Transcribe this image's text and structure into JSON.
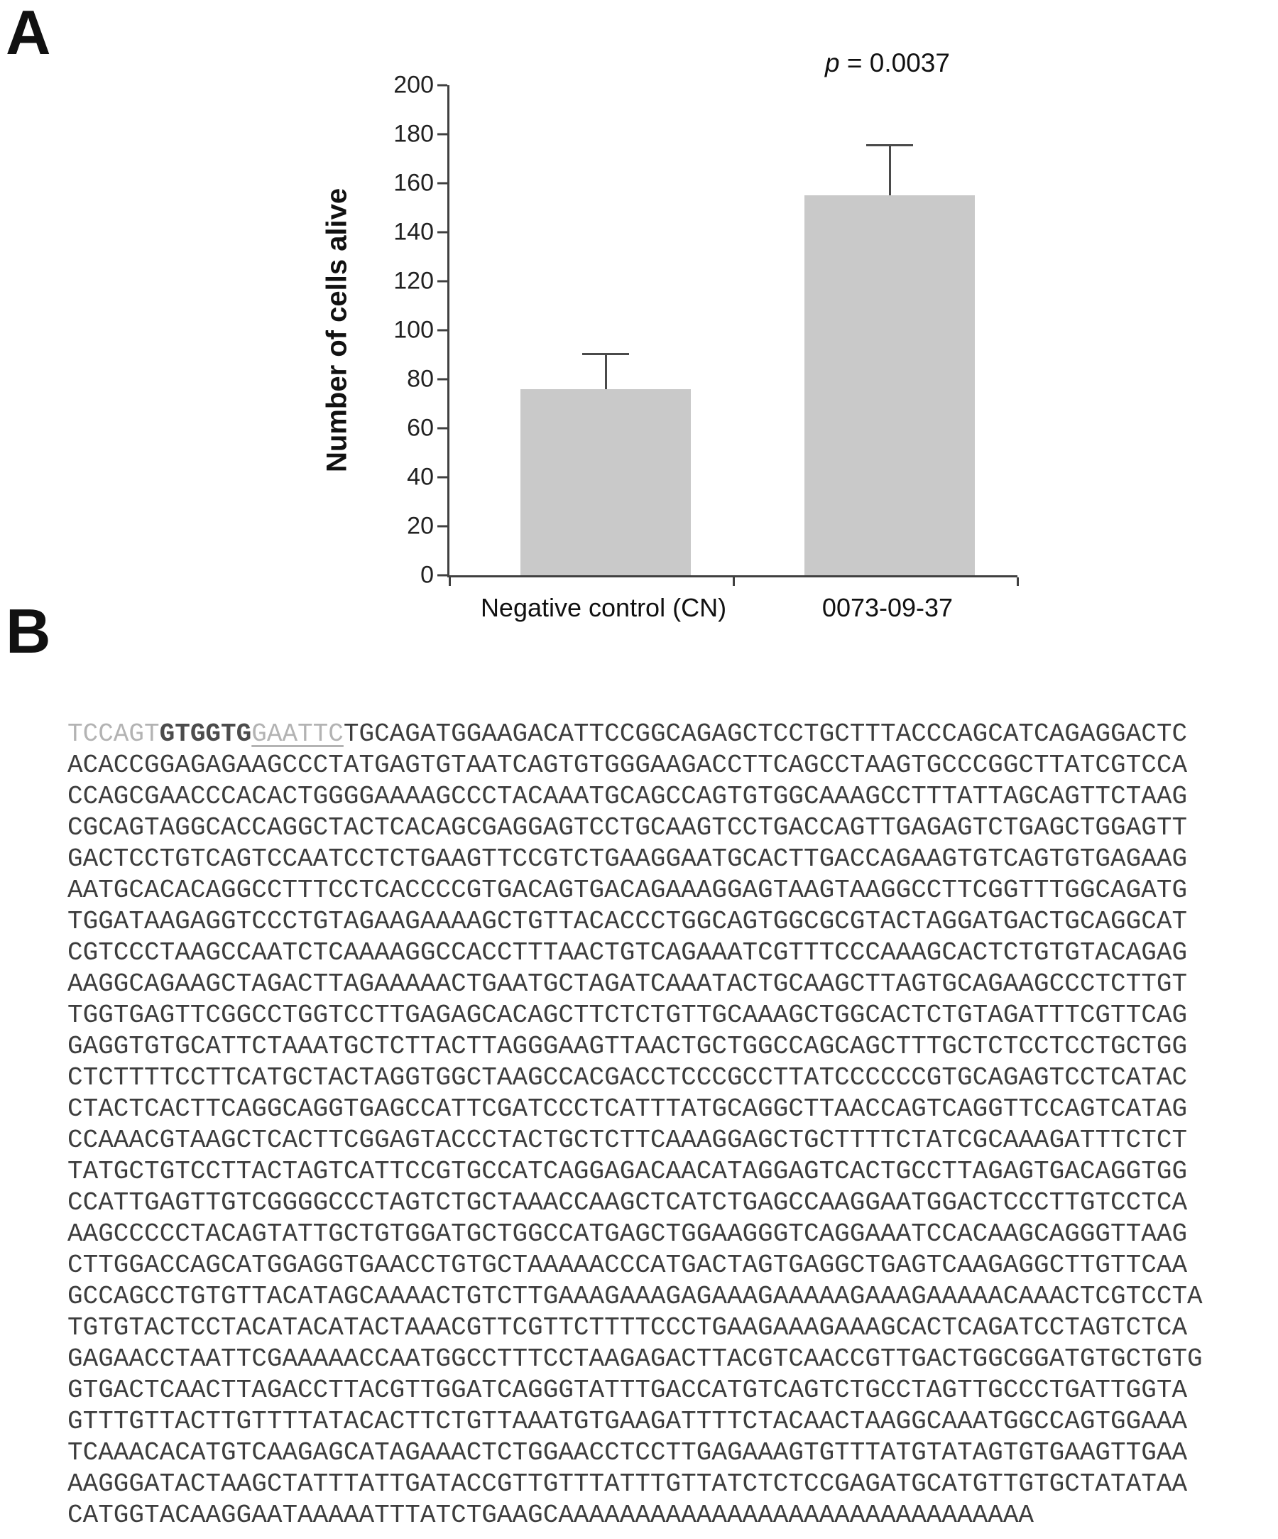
{
  "panel_a": {
    "label": "A",
    "chart_data": {
      "type": "bar",
      "categories": [
        "Negative control (CN)",
        "0073-09-37"
      ],
      "values": [
        76,
        155
      ],
      "error_upper": [
        14,
        20
      ],
      "title": "",
      "xlabel": "",
      "ylabel": "Number of cells alive",
      "ylim": [
        0,
        200
      ],
      "ytick_step": 20,
      "grid": false,
      "legend": false,
      "bar_color": "#c9c9c9",
      "error_bar_color": "#4a4a4a",
      "annotation": {
        "italic_part": "p",
        "rest": " = 0.0037"
      }
    }
  },
  "panel_b": {
    "label": "B",
    "sequence": {
      "line1_segments": [
        {
          "text": "TCCAGT",
          "style": "dim",
          "meaning": "vector-flank"
        },
        {
          "text": "GTGGTG",
          "style": "bold",
          "meaning": "bold-motif"
        },
        {
          "text": "GAATTC",
          "style": "dim-underline",
          "meaning": "restriction-site"
        },
        {
          "text": "TGCAGATGGAAGACATTCCGGCAGAGCTCCTGCTTTACCCAGCATCAGAGGACTC",
          "style": "normal",
          "meaning": "insert"
        }
      ],
      "rest_lines": [
        "ACACCGGAGAGAAGCCCTATGAGTGTAATCAGTGTGGGAAGACCTTCAGCCTAAGTGCCCGGCTTATCGTCCA",
        "CCAGCGAACCCACACTGGGGAAAAGCCCTACAAATGCAGCCAGTGTGGCAAAGCCTTTATTAGCAGTTCTAAG",
        "CGCAGTAGGCACCAGGCTACTCACAGCGAGGAGTCCTGCAAGTCCTGACCAGTTGAGAGTCTGAGCTGGAGTT",
        "GACTCCTGTCAGTCCAATCCTCTGAAGTTCCGTCTGAAGGAATGCACTTGACCAGAAGTGTCAGTGTGAGAAG",
        "AATGCACACAGGCCTTTCCTCACCCCGTGACAGTGACAGAAAGGAGTAAGTAAGGCCTTCGGTTTGGCAGATG",
        "TGGATAAGAGGTCCCTGTAGAAGAAAAGCTGTTACACCCTGGCAGTGGCGCGTACTAGGATGACTGCAGGCAT",
        "CGTCCCTAAGCCAATCTCAAAAGGCCACCTTTAACTGTCAGAAATCGTTTCCCAAAGCACTCTGTGTACAGAG",
        "AAGGCAGAAGCTAGACTTAGAAAAACTGAATGCTAGATCAAATACTGCAAGCTTAGTGCAGAAGCCCTCTTGT",
        "TGGTGAGTTCGGCCTGGTCCTTGAGAGCACAGCTTCTCTGTTGCAAAGCTGGCACTCTGTAGATTTCGTTCAG",
        "GAGGTGTGCATTCTAAATGCTCTTACTTAGGGAAGTTAACTGCTGGCCAGCAGCTTTGCTCTCCTCCTGCTGG",
        "CTCTTTTCCTTCATGCTACTAGGTGGCTAAGCCACGACCTCCCGCCTTATCCCCCCGTGCAGAGTCCTCATAC",
        "CTACTCACTTCAGGCAGGTGAGCCATTCGATCCCTCATTTATGCAGGCTTAACCAGTCAGGTTCCAGTCATAG",
        "CCAAACGTAAGCTCACTTCGGAGTACCCTACTGCTCTTCAAAGGAGCTGCTTTTCTATCGCAAAGATTTCTCT",
        "TATGCTGTCCTTACTAGTCATTCCGTGCCATCAGGAGACAACATAGGAGTCACTGCCTTAGAGTGACAGGTGG",
        "CCATTGAGTTGTCGGGGCCCTAGTCTGCTAAACCAAGCTCATCTGAGCCAAGGAATGGACTCCCTTGTCCTCA",
        "AAGCCCCCTACAGTATTGCTGTGGATGCTGGCCATGAGCTGGAAGGGTCAGGAAATCCACAAGCAGGGTTAAG",
        "CTTGGACCAGCATGGAGGTGAACCTGTGCTAAAAACCCATGACTAGTGAGGCTGAGTCAAGAGGCTTGTTCAA",
        "GCCAGCCTGTGTTACATAGCAAAACTGTCTTGAAAGAAAGAGAAAGAAAAAGAAAGAAAAACAAACTCGTCCTA",
        "TGTGTACTCCTACATACATACTAAACGTTCGTTCTTTTCCCTGAAGAAAGAAAGCACTCAGATCCTAGTCTCA",
        "GAGAACCTAATTCGAAAAACCAATGGCCTTTCCTAAGAGACTTACGTCAACCGTTGACTGGCGGATGTGCTGTG",
        "GTGACTCAACTTAGACCTTACGTTGGATCAGGGTATTTGACCATGTCAGTCTGCCTAGTTGCCCTGATTGGTA",
        "GTTTGTTACTTGTTTTATACACTTCTGTTAAATGTGAAGATTTTCTACAACTAAGGCAAATGGCCAGTGGAAA",
        "TCAAACACATGTCAAGAGCATAGAAACTCTGGAACCTCCTTGAGAAAGTGTTTATGTATAGTGTGAAGTTGAA",
        "AAGGGATACTAAGCTATTTATTGATACCGTTGTTTATTTGTTATCTCTCCGAGATGCATGTTGTGCTATATAA",
        "CATGGTACAAGGAATAAAAATTTATCTGAAGCAAAAAAAAAAAAAAAAAAAAAAAAAAAAAAA"
      ]
    }
  }
}
